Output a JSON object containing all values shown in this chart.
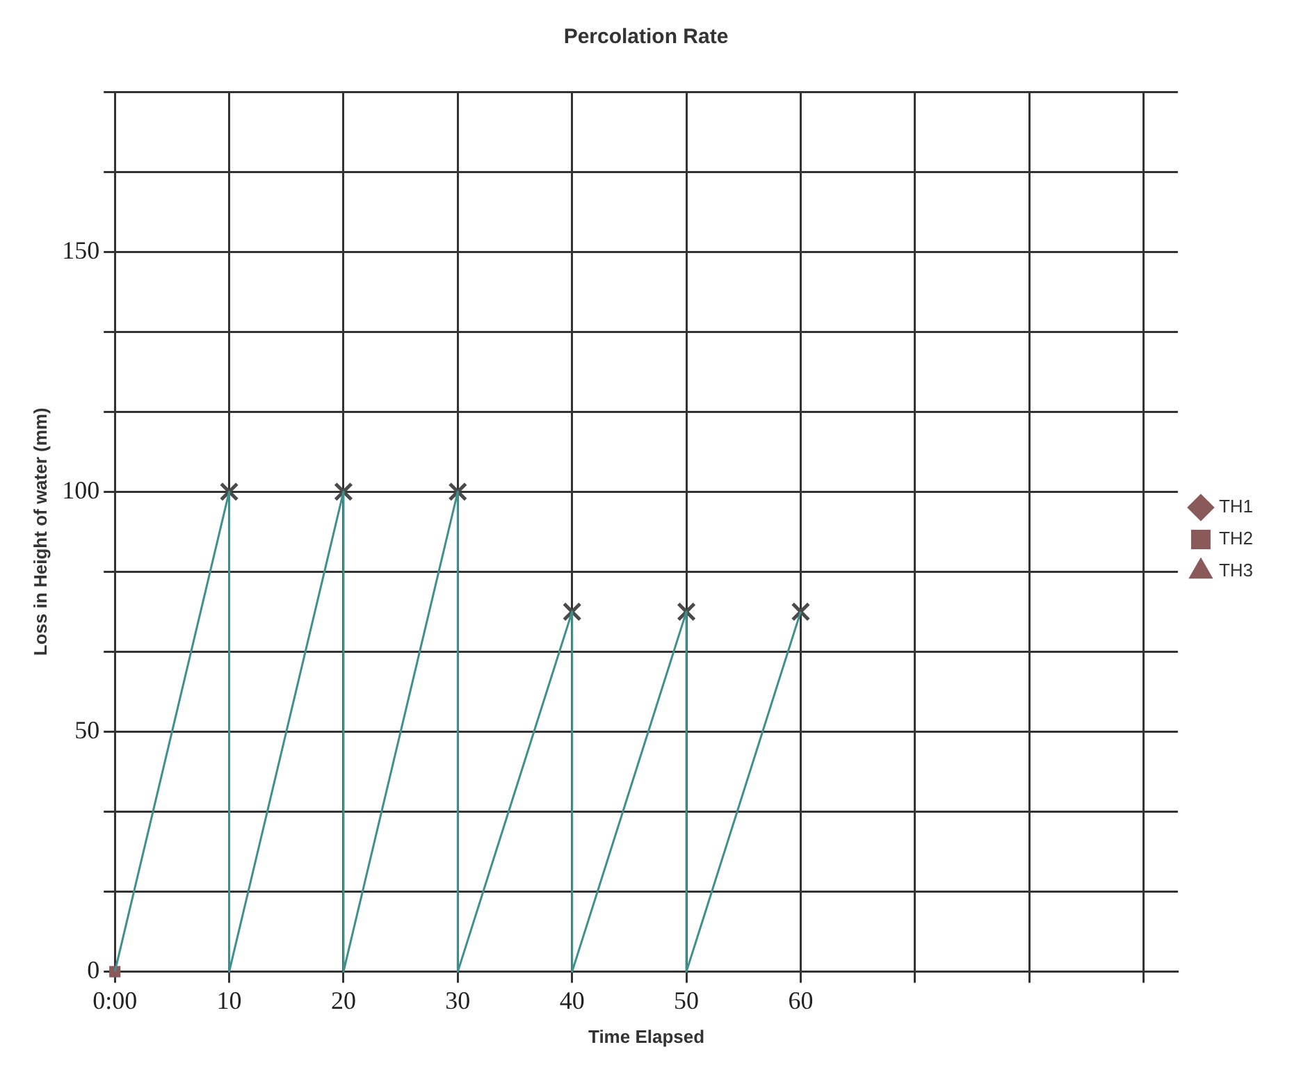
{
  "chart_data": {
    "type": "line",
    "title": "Percolation Rate",
    "xlabel": "Time Elapsed",
    "ylabel": "Loss in Height of water (mm)",
    "xlim": [
      0,
      93
    ],
    "ylim": [
      0,
      183.33
    ],
    "xticks": [
      {
        "value": 0,
        "label": "0:00"
      },
      10,
      20,
      30,
      40,
      50,
      60,
      {
        "value": 70,
        "label": null
      },
      {
        "value": 80,
        "label": null
      },
      {
        "value": 90,
        "label": null
      }
    ],
    "yticks": [
      0,
      {
        "value": 16.67,
        "label": null
      },
      {
        "value": 33.33,
        "label": null
      },
      50,
      {
        "value": 66.67,
        "label": null
      },
      {
        "value": 83.33,
        "label": null
      },
      100,
      {
        "value": 116.67,
        "label": null
      },
      {
        "value": 133.33,
        "label": null
      },
      150,
      {
        "value": 166.67,
        "label": null
      },
      {
        "value": 183.33,
        "label": null
      }
    ],
    "grid": true,
    "legend": "right",
    "series": [
      {
        "type": "line",
        "color": "#3f8f8a",
        "marker": "none",
        "line_style": "solid",
        "x": [
          0,
          10,
          10,
          20,
          20,
          30,
          30,
          40,
          40,
          50,
          50,
          60
        ],
        "values": [
          0,
          100,
          0,
          100,
          0,
          100,
          0,
          75,
          0,
          75,
          0,
          75
        ]
      },
      {
        "type": "scatter",
        "color": "#4a4a4a",
        "marker": "cross",
        "x": [
          10,
          20,
          30,
          40,
          50,
          60
        ],
        "values": [
          100,
          100,
          100,
          75,
          75,
          75
        ]
      },
      {
        "type": "line",
        "name": "TH1",
        "color": "#8a5a5a",
        "marker": "diamond",
        "line_style": "dotted"
      },
      {
        "type": "line",
        "name": "TH2",
        "color": "#8a5a5a",
        "marker": "square",
        "line_style": "dashed",
        "x": [
          0
        ],
        "values": [
          0
        ]
      },
      {
        "type": "line",
        "name": "TH3",
        "color": "#8a5a5a",
        "marker": "triangle",
        "line_style": "dashed"
      }
    ]
  }
}
